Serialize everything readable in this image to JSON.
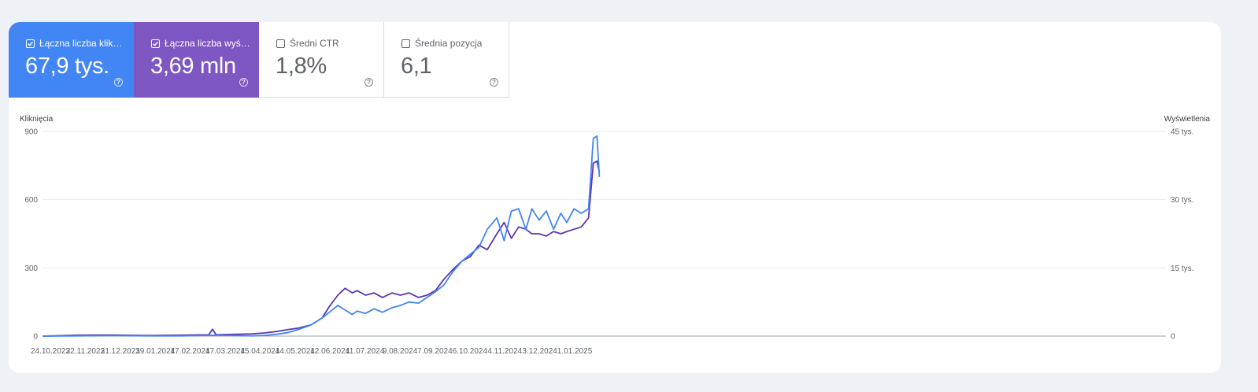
{
  "metrics": [
    {
      "label": "Łączna liczba kliknięć",
      "value": "67,9 tys.",
      "checked": true,
      "color": "#4285f4"
    },
    {
      "label": "Łączna liczba wyświetleń",
      "value": "3,69 mln",
      "checked": true,
      "color": "#7e57c2"
    },
    {
      "label": "Średni CTR",
      "value": "1,8%",
      "checked": false,
      "color": "#ffffff"
    },
    {
      "label": "Średnia pozycja",
      "value": "6,1",
      "checked": false,
      "color": "#ffffff"
    }
  ],
  "help_glyph": "?",
  "chart_data": {
    "type": "line",
    "ylabel_left": "Kliknięcia",
    "ylabel_right": "Wyświetlenia",
    "ylim_left": [
      0,
      900
    ],
    "ylim_right": [
      0,
      45000
    ],
    "yticks_left": [
      "900",
      "600",
      "300",
      "0"
    ],
    "yticks_right": [
      "45 tys.",
      "30 tys.",
      "15 tys.",
      "0"
    ],
    "x_tick_labels": [
      "24.10.2023",
      "22.11.2023",
      "21.12.2023",
      "19.01.2024",
      "17.02.2024",
      "17.03.2024",
      "15.04.2024",
      "14.05.2024",
      "12.06.2024",
      "11.07.2024",
      "9.08.2024",
      "7.09.2024",
      "6.10.2024",
      "4.11.2024",
      "3.12.2024",
      "1.01.2025"
    ],
    "grid": true,
    "series": [
      {
        "name": "Kliknięcia",
        "axis": "left",
        "color": "#4285f4",
        "x": [
          "2023-10-24",
          "2023-11-22",
          "2023-12-21",
          "2024-01-19",
          "2024-02-17",
          "2024-03-17",
          "2024-04-15",
          "2024-04-25",
          "2024-05-05",
          "2024-05-14",
          "2024-05-24",
          "2024-06-03",
          "2024-06-12",
          "2024-06-18",
          "2024-06-25",
          "2024-07-01",
          "2024-07-07",
          "2024-07-11",
          "2024-07-18",
          "2024-07-25",
          "2024-08-01",
          "2024-08-09",
          "2024-08-16",
          "2024-08-23",
          "2024-08-31",
          "2024-09-07",
          "2024-09-14",
          "2024-09-21",
          "2024-09-28",
          "2024-10-06",
          "2024-10-13",
          "2024-10-20",
          "2024-10-27",
          "2024-11-04",
          "2024-11-10",
          "2024-11-16",
          "2024-11-22",
          "2024-11-28",
          "2024-12-03",
          "2024-12-09",
          "2024-12-15",
          "2024-12-21",
          "2024-12-27",
          "2025-01-01",
          "2025-01-07",
          "2025-01-13",
          "2025-01-19",
          "2025-01-23",
          "2025-01-26",
          "2025-01-28"
        ],
        "values": [
          0,
          1,
          2,
          1,
          1,
          4,
          1,
          3,
          8,
          15,
          30,
          50,
          80,
          105,
          135,
          115,
          95,
          110,
          100,
          120,
          105,
          125,
          135,
          150,
          145,
          170,
          195,
          225,
          280,
          330,
          360,
          390,
          470,
          520,
          420,
          550,
          560,
          470,
          560,
          510,
          550,
          470,
          540,
          500,
          560,
          540,
          560,
          870,
          880,
          700
        ]
      },
      {
        "name": "Wyświetlenia",
        "axis": "right",
        "color": "#5e35b1",
        "x": [
          "2023-10-24",
          "2023-11-22",
          "2023-12-21",
          "2024-01-19",
          "2024-02-17",
          "2024-03-10",
          "2024-03-13",
          "2024-03-16",
          "2024-04-15",
          "2024-04-25",
          "2024-05-05",
          "2024-05-14",
          "2024-05-24",
          "2024-06-03",
          "2024-06-12",
          "2024-06-18",
          "2024-06-25",
          "2024-07-01",
          "2024-07-07",
          "2024-07-11",
          "2024-07-18",
          "2024-07-25",
          "2024-08-01",
          "2024-08-09",
          "2024-08-16",
          "2024-08-23",
          "2024-08-31",
          "2024-09-07",
          "2024-09-14",
          "2024-09-21",
          "2024-09-28",
          "2024-10-06",
          "2024-10-13",
          "2024-10-20",
          "2024-10-27",
          "2024-11-04",
          "2024-11-10",
          "2024-11-16",
          "2024-11-22",
          "2024-11-28",
          "2024-12-03",
          "2024-12-09",
          "2024-12-15",
          "2024-12-21",
          "2024-12-27",
          "2025-01-01",
          "2025-01-07",
          "2025-01-13",
          "2025-01-19",
          "2025-01-23",
          "2025-01-26",
          "2025-01-28"
        ],
        "values": [
          0,
          200,
          250,
          150,
          200,
          300,
          1500,
          300,
          500,
          700,
          1000,
          1400,
          1800,
          2500,
          4000,
          6500,
          9000,
          10500,
          9500,
          10000,
          9000,
          9500,
          8500,
          9500,
          9000,
          9500,
          8500,
          9000,
          10000,
          12500,
          14500,
          16500,
          17500,
          20000,
          19000,
          22500,
          25000,
          21500,
          24000,
          23500,
          22500,
          22500,
          22000,
          23000,
          22500,
          23000,
          23500,
          24000,
          26000,
          38000,
          38500,
          36000
        ]
      }
    ]
  }
}
